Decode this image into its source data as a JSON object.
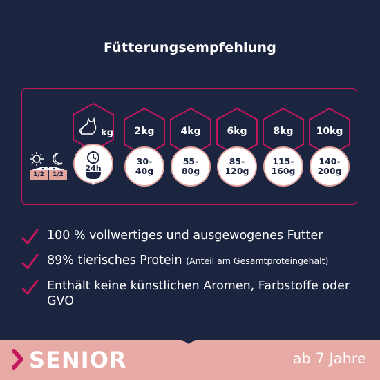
{
  "title": "Fütterungsempfehlung",
  "table": {
    "header_unit": "kg",
    "weights": [
      "2kg",
      "4kg",
      "6kg",
      "8kg",
      "10kg"
    ],
    "amounts": [
      "30-\n40g",
      "55-\n80g",
      "85-\n120g",
      "115-\n160g",
      "140-\n200g"
    ],
    "daily_label": "24h",
    "gram_label": "g",
    "portion_morning": "1/2",
    "portion_evening": "1/2"
  },
  "benefits": [
    {
      "text": "100 % vollwertiges und ausgewogenes Futter",
      "note": ""
    },
    {
      "text": "89% tierisches Protein",
      "note": "(Anteil am Gesamtproteingehalt)"
    },
    {
      "text": "Enthält keine künstlichen Aromen, Farbstoffe oder GVO",
      "note": ""
    }
  ],
  "footer": {
    "category": "SENIOR",
    "age": "ab 7 Jahre"
  },
  "colors": {
    "background": "#1c2540",
    "accent": "#c2185b",
    "pink": "#e8aaa4"
  },
  "icons": [
    "cat-icon",
    "clock-icon",
    "bowl-icon",
    "sun-icon",
    "moon-icon",
    "check-icon",
    "chevron-right-icon"
  ]
}
